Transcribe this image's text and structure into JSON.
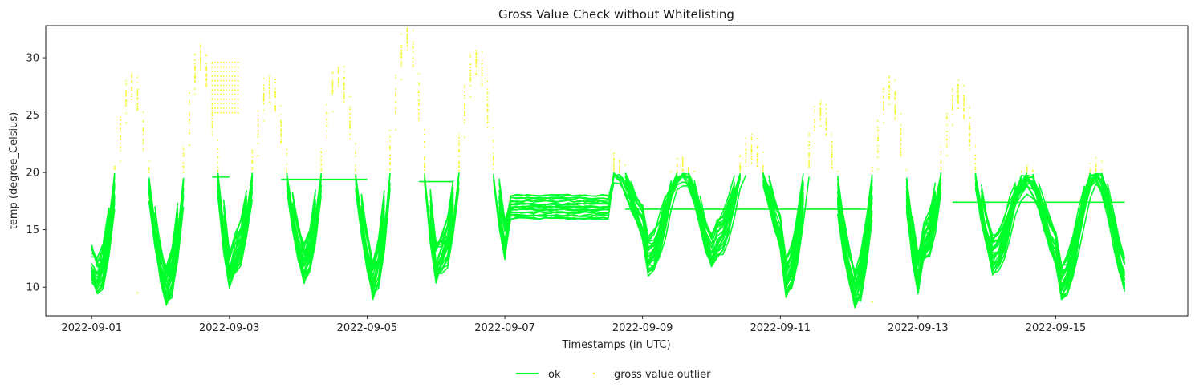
{
  "chart_data": {
    "type": "line",
    "title": "Gross Value Check without Whitelisting",
    "xlabel": "Timestamps (in UTC)",
    "ylabel": "temp (degree_Celsius)",
    "x_ticks": [
      "2022-09-01",
      "2022-09-03",
      "2022-09-05",
      "2022-09-07",
      "2022-09-09",
      "2022-09-11",
      "2022-09-13",
      "2022-09-15"
    ],
    "y_ticks": [
      10,
      15,
      20,
      25,
      30
    ],
    "xlim": [
      "2022-08-31T08:00",
      "2022-09-16T22:00"
    ],
    "ylim": [
      7.5,
      32.8
    ],
    "gross_value_threshold": 20,
    "grid": false,
    "legend_position": "bottom-center",
    "colors": {
      "ok": "#00ff2a",
      "outlier": "#f5f52e"
    },
    "series": [
      {
        "name": "ok",
        "mark": "line",
        "description_points": [
          [
            "2022-09-01T00:00",
            19.5
          ],
          [
            "2022-09-01T06:00",
            12.0
          ],
          [
            "2022-09-01T12:00",
            19.8
          ],
          [
            "2022-09-01T20:00",
            19.8
          ],
          [
            "2022-09-02T06:00",
            10.2
          ],
          [
            "2022-09-02T12:00",
            19.8
          ],
          [
            "2022-09-03T00:00",
            14.5
          ],
          [
            "2022-09-03T06:00",
            19.8
          ],
          [
            "2022-09-03T18:00",
            19.8
          ],
          [
            "2022-09-04T06:00",
            12.2
          ],
          [
            "2022-09-04T12:00",
            19.5
          ],
          [
            "2022-09-04T18:00",
            19.8
          ],
          [
            "2022-09-05T06:00",
            10.8
          ],
          [
            "2022-09-05T12:00",
            19.8
          ],
          [
            "2022-09-05T18:00",
            19.8
          ],
          [
            "2022-09-06T06:00",
            13.0
          ],
          [
            "2022-09-06T12:00",
            19.8
          ],
          [
            "2022-09-06T20:00",
            19.8
          ],
          [
            "2022-09-07T06:00",
            14.0
          ],
          [
            "2022-09-07T12:00",
            17.0
          ],
          [
            "2022-09-08T12:00",
            17.0
          ],
          [
            "2022-09-08T18:00",
            19.5
          ],
          [
            "2022-09-09T06:00",
            13.0
          ],
          [
            "2022-09-09T12:00",
            19.8
          ],
          [
            "2022-09-10T06:00",
            14.5
          ],
          [
            "2022-09-10T18:00",
            19.8
          ],
          [
            "2022-09-11T06:00",
            11.0
          ],
          [
            "2022-09-11T12:00",
            19.8
          ],
          [
            "2022-09-11T18:00",
            19.8
          ],
          [
            "2022-09-12T06:00",
            10.0
          ],
          [
            "2022-09-12T12:00",
            19.5
          ],
          [
            "2022-09-12T18:00",
            19.8
          ],
          [
            "2022-09-13T06:00",
            14.0
          ],
          [
            "2022-09-13T12:00",
            19.8
          ],
          [
            "2022-09-13T18:00",
            19.8
          ],
          [
            "2022-09-14T12:00",
            14.5
          ],
          [
            "2022-09-15T06:00",
            10.5
          ],
          [
            "2022-09-15T12:00",
            19.8
          ],
          [
            "2022-09-16T00:00",
            12.0
          ]
        ]
      },
      {
        "name": "gross value outlier",
        "mark": "scatter",
        "description_points": [
          [
            "2022-09-01T08:00",
            27.5
          ],
          [
            "2022-09-01T12:00",
            25.0
          ],
          [
            "2022-09-02T18:00",
            29.5
          ],
          [
            "2022-09-03T00:00",
            26.5
          ],
          [
            "2022-09-03T12:00",
            27.5
          ],
          [
            "2022-09-04T14:00",
            28.5
          ],
          [
            "2022-09-05T14:00",
            31.8
          ],
          [
            "2022-09-06T14:00",
            29.8
          ],
          [
            "2022-09-08T18:00",
            21.8
          ],
          [
            "2022-09-11T14:00",
            25.2
          ],
          [
            "2022-09-12T14:00",
            27.2
          ],
          [
            "2022-09-13T14:00",
            26.8
          ],
          [
            "2022-09-15T14:00",
            20.0
          ],
          [
            "2022-09-01T16:00",
            9.5
          ],
          [
            "2022-09-12T08:00",
            8.7
          ]
        ]
      }
    ]
  }
}
